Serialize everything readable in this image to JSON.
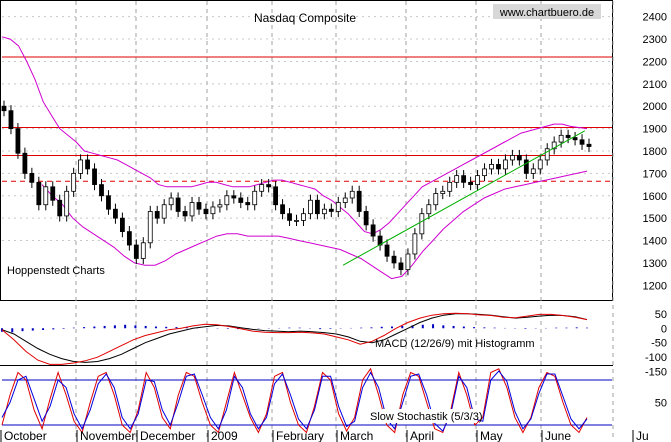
{
  "chart_data": [
    {
      "type": "candlestick",
      "title": "Nasdaq Composite",
      "watermark": "www.chartbuero.de",
      "source_note": "Hoppenstedt Charts",
      "x_months": [
        "October",
        "November",
        "December",
        "2009",
        "February",
        "March",
        "April",
        "May",
        "June",
        "Ju"
      ],
      "y_ticks": [
        1200,
        1300,
        1400,
        1500,
        1600,
        1700,
        1800,
        1900,
        2000,
        2100,
        2200,
        2300,
        2400
      ],
      "y_tick_labels": [
        "1200",
        "1300",
        "1400",
        "1500",
        "1600",
        "1700",
        "1800",
        "1900",
        "2000",
        "2100",
        "2200",
        "2300",
        "2400"
      ],
      "ylim": [
        1130,
        2470
      ],
      "grid": true,
      "horizontal_levels": [
        {
          "value": 2220,
          "color": "#e00000",
          "style": "solid"
        },
        {
          "value": 1905,
          "color": "#e00000",
          "style": "solid"
        },
        {
          "value": 1780,
          "color": "#e00000",
          "style": "solid"
        },
        {
          "value": 1665,
          "color": "#e00000",
          "style": "dashed"
        }
      ],
      "trendline": {
        "color": "#00b000",
        "from": [
          0.51,
          1290
        ],
        "to": [
          0.98,
          1890
        ]
      },
      "series_close": [
        1980,
        1900,
        1790,
        1700,
        1660,
        1560,
        1640,
        1580,
        1510,
        1620,
        1700,
        1760,
        1720,
        1650,
        1600,
        1540,
        1500,
        1440,
        1380,
        1320,
        1390,
        1530,
        1500,
        1560,
        1590,
        1530,
        1510,
        1570,
        1540,
        1520,
        1550,
        1560,
        1600,
        1590,
        1570,
        1560,
        1620,
        1650,
        1640,
        1560,
        1520,
        1490,
        1490,
        1520,
        1580,
        1520,
        1540,
        1530,
        1570,
        1590,
        1620,
        1530,
        1470,
        1420,
        1380,
        1330,
        1300,
        1270,
        1340,
        1430,
        1520,
        1560,
        1610,
        1620,
        1660,
        1690,
        1660,
        1650,
        1690,
        1720,
        1740,
        1720,
        1760,
        1780,
        1760,
        1700,
        1720,
        1760,
        1810,
        1840,
        1870,
        1860,
        1850,
        1830,
        1820
      ],
      "bollinger_upper": [
        2310,
        2300,
        2270,
        2200,
        2120,
        2020,
        1960,
        1900,
        1870,
        1840,
        1800,
        1790,
        1780,
        1770,
        1760,
        1740,
        1720,
        1700,
        1680,
        1650,
        1640,
        1640,
        1640,
        1640,
        1650,
        1660,
        1660,
        1650,
        1640,
        1640,
        1640,
        1650,
        1660,
        1670,
        1670,
        1660,
        1650,
        1640,
        1630,
        1600,
        1580,
        1550,
        1520,
        1480,
        1440,
        1430,
        1450,
        1480,
        1520,
        1560,
        1600,
        1640,
        1660,
        1680,
        1700,
        1720,
        1740,
        1760,
        1780,
        1800,
        1820,
        1840,
        1860,
        1880,
        1890,
        1900,
        1910,
        1920,
        1920,
        1910,
        1905,
        1900
      ],
      "bollinger_lower": [
        1650,
        1600,
        1560,
        1500,
        1460,
        1430,
        1400,
        1370,
        1330,
        1300,
        1290,
        1290,
        1310,
        1340,
        1360,
        1380,
        1400,
        1420,
        1430,
        1430,
        1420,
        1420,
        1420,
        1420,
        1410,
        1400,
        1390,
        1380,
        1370,
        1360,
        1340,
        1320,
        1290,
        1260,
        1230,
        1240,
        1290,
        1350,
        1400,
        1450,
        1490,
        1530,
        1560,
        1590,
        1610,
        1630,
        1640,
        1650,
        1660,
        1670,
        1680,
        1690,
        1700,
        1710
      ]
    },
    {
      "type": "line",
      "title": "MACD (12/26/9) mit Histogramm",
      "y_tick_labels": [
        "50",
        "0",
        "-50",
        "-100",
        "-150"
      ],
      "ylim": [
        -165,
        70
      ],
      "series": [
        {
          "color": "#000000",
          "values": [
            -5,
            -20,
            -45,
            -70,
            -90,
            -105,
            -115,
            -118,
            -115,
            -105,
            -90,
            -70,
            -50,
            -35,
            -20,
            -10,
            0,
            5,
            10,
            8,
            2,
            -4,
            -8,
            -10,
            -12,
            -10,
            -12,
            -15,
            -20,
            -30,
            -45,
            -50,
            -40,
            -20,
            0,
            20,
            35,
            45,
            50,
            50,
            48,
            45,
            40,
            35,
            38,
            42,
            45,
            44,
            40,
            30
          ]
        },
        {
          "color": "#e00000",
          "values": [
            -5,
            -40,
            -80,
            -110,
            -125,
            -125,
            -120,
            -112,
            -100,
            -80,
            -60,
            -40,
            -25,
            -15,
            -5,
            0,
            8,
            14,
            12,
            6,
            -2,
            -10,
            -14,
            -15,
            -15,
            -14,
            -16,
            -20,
            -30,
            -40,
            -55,
            -45,
            -25,
            0,
            20,
            35,
            45,
            50,
            52,
            50,
            46,
            44,
            38,
            36,
            42,
            48,
            48,
            44,
            38,
            30
          ]
        }
      ],
      "histogram_color": "#0000c0",
      "histogram": [
        -12,
        -14,
        -10,
        -8,
        -6,
        -4,
        -2,
        2,
        4,
        6,
        8,
        10,
        12,
        10,
        8,
        6,
        5,
        4,
        3,
        2,
        1,
        -1,
        -2,
        -3,
        -2,
        -1,
        -1,
        1,
        2,
        2,
        -1,
        -3,
        -2,
        -1,
        1,
        2,
        3,
        5,
        6,
        8,
        10,
        12,
        14,
        10,
        8,
        6,
        4,
        3,
        2,
        1,
        -1,
        -2,
        -1,
        1,
        2,
        2,
        3,
        2
      ]
    },
    {
      "type": "line",
      "title": "Slow Stochastik (5/3/3)",
      "y_tick_labels": [
        "50"
      ],
      "ylim": [
        0,
        100
      ],
      "levels": [
        80,
        20
      ],
      "levels_color": "#0000c0",
      "series": [
        {
          "color": "#e00000",
          "values": [
            20,
            60,
            90,
            80,
            40,
            15,
            55,
            90,
            60,
            25,
            10,
            50,
            85,
            90,
            60,
            20,
            10,
            40,
            90,
            70,
            30,
            15,
            60,
            90,
            85,
            50,
            20,
            10,
            50,
            90,
            60,
            30,
            10,
            35,
            85,
            90,
            50,
            20,
            10,
            45,
            90,
            80,
            35,
            12,
            30,
            80,
            95,
            60,
            20,
            10,
            60,
            90,
            85,
            50,
            15,
            10,
            40,
            90,
            60,
            20,
            30,
            90,
            95,
            70,
            30,
            10,
            30,
            70,
            90,
            85,
            50,
            20,
            10,
            30
          ]
        },
        {
          "color": "#0000e0",
          "values": [
            30,
            50,
            80,
            85,
            55,
            25,
            45,
            80,
            70,
            35,
            15,
            40,
            75,
            88,
            70,
            30,
            15,
            35,
            80,
            78,
            40,
            20,
            50,
            85,
            88,
            60,
            30,
            15,
            40,
            85,
            70,
            35,
            15,
            30,
            75,
            88,
            60,
            28,
            15,
            40,
            85,
            85,
            45,
            18,
            25,
            70,
            90,
            70,
            28,
            15,
            50,
            85,
            88,
            60,
            22,
            12,
            35,
            85,
            70,
            28,
            25,
            80,
            92,
            78,
            38,
            15,
            28,
            62,
            88,
            88,
            58,
            28,
            15,
            28
          ]
        }
      ]
    }
  ],
  "ui": {
    "title": "Nasdaq Composite",
    "watermark": "www.chartbuero.de",
    "source_note": "Hoppenstedt Charts",
    "macd_label": "MACD (12/26/9) mit Histogramm",
    "stoch_label": "Slow Stochastik (5/3/3)"
  }
}
